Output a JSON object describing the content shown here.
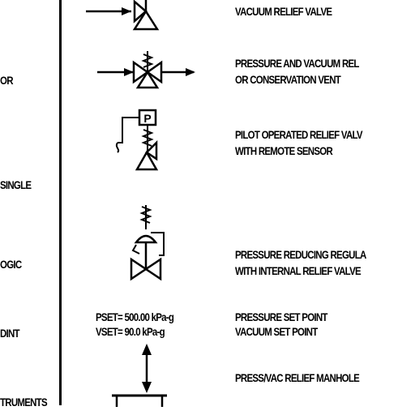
{
  "left_column": {
    "fragment_or": "OR",
    "fragment_single": "SINGLE",
    "fragment_logic": "OGIC",
    "fragment_point": "DINT",
    "fragment_instruments": "TRUMENTS"
  },
  "rows": [
    {
      "id": "vacuum-relief",
      "lines": [
        "VACUUM RELIEF VALVE"
      ]
    },
    {
      "id": "conservation-vent",
      "lines": [
        "PRESSURE AND VACUUM REL",
        "OR CONSERVATION VENT"
      ]
    },
    {
      "id": "pilot-relief",
      "symbol_tag": "P",
      "lines": [
        "PILOT OPERATED RELIEF VALV",
        "WITH REMOTE SENSOR"
      ]
    },
    {
      "id": "reducing-regulator",
      "lines": [
        "PRESSURE REDUCING REGULA",
        "WITH INTERNAL RELIEF VALVE"
      ]
    },
    {
      "id": "set-points",
      "values": [
        "PSET= 500.00 kPa-g",
        "VSET= 90.0 kPa-g"
      ],
      "lines": [
        "PRESSURE SET POINT",
        "VACUUM SET POINT"
      ]
    },
    {
      "id": "manhole",
      "lines": [
        "PRESS/VAC RELIEF MANHOLE"
      ]
    }
  ]
}
